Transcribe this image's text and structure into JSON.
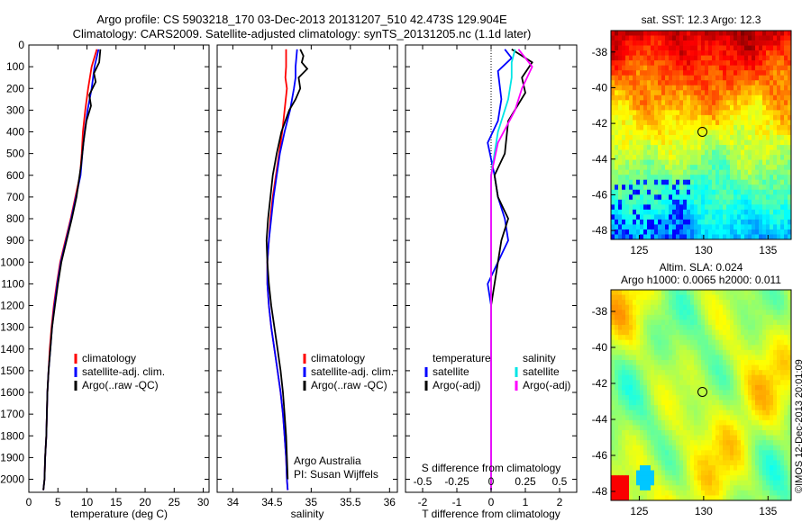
{
  "titles": {
    "line1": "Argo profile: CS 5903218_170 03-Dec-2013 20131207_510 42.473S 129.904E",
    "line2": "Climatology: CARS2009. Satellite-adjusted climatology: synTS_20131205.nc (1.1d later)"
  },
  "colors": {
    "climatology": "#ff0000",
    "satellite": "#0000ff",
    "argo": "#000000",
    "sat_salinity": "#00e5e5",
    "argo_adj_salinity": "#ff00ff"
  },
  "chart_data": [
    {
      "type": "line",
      "id": "temperature",
      "xlabel": "temperature (deg C)",
      "ylabel": "",
      "xlim": [
        0,
        31
      ],
      "ylim": [
        2060,
        0
      ],
      "y_reversed": true,
      "xticks": [
        0,
        5,
        10,
        15,
        20,
        25,
        30
      ],
      "yticks": [
        0,
        100,
        200,
        300,
        400,
        500,
        600,
        700,
        800,
        900,
        1000,
        1100,
        1200,
        1300,
        1400,
        1500,
        1600,
        1700,
        1800,
        1900,
        2000
      ],
      "legend": [
        "climatology",
        "satellite-adj. clim.",
        "Argo(..raw -QC)"
      ],
      "legend_position": "lower-center",
      "series": [
        {
          "name": "climatology",
          "color": "#ff0000",
          "x": [
            11.7,
            10.8,
            10.2,
            9.7,
            9.3,
            9.1,
            8.8,
            8.0,
            7.2,
            6.3,
            5.4,
            4.8,
            4.3,
            3.9,
            3.6,
            3.4,
            3.2,
            3.1,
            3.0,
            2.8,
            2.7,
            2.5
          ],
          "y": [
            20,
            100,
            200,
            300,
            400,
            500,
            600,
            700,
            800,
            900,
            1000,
            1100,
            1200,
            1300,
            1400,
            1500,
            1600,
            1700,
            1800,
            1900,
            2000,
            2050
          ]
        },
        {
          "name": "satellite-adj. clim.",
          "color": "#0000ff",
          "x": [
            12.0,
            11.3,
            10.8,
            10.1,
            9.6,
            9.2,
            8.9,
            8.1,
            7.3,
            6.4,
            5.5,
            4.9,
            4.4,
            4.0,
            3.7,
            3.4,
            3.2,
            3.1,
            3.0,
            2.8,
            2.7,
            2.5
          ],
          "y": [
            20,
            100,
            200,
            300,
            400,
            500,
            600,
            700,
            800,
            900,
            1000,
            1100,
            1200,
            1300,
            1400,
            1500,
            1600,
            1700,
            1800,
            1900,
            2000,
            2050
          ]
        },
        {
          "name": "Argo(..raw -QC)",
          "color": "#000000",
          "x": [
            12.3,
            12.1,
            11.2,
            11.5,
            10.4,
            10.7,
            9.9,
            9.4,
            9.0,
            8.2,
            7.4,
            6.5,
            5.6,
            5.0,
            4.5,
            4.0,
            3.7,
            3.4,
            3.2,
            3.1,
            3.0,
            2.8,
            2.7,
            2.5
          ],
          "y": [
            20,
            80,
            130,
            170,
            230,
            280,
            350,
            450,
            550,
            700,
            800,
            900,
            1000,
            1100,
            1200,
            1300,
            1400,
            1500,
            1600,
            1700,
            1800,
            1900,
            2000,
            2050
          ]
        }
      ]
    },
    {
      "type": "line",
      "id": "salinity",
      "xlabel": "salinity",
      "ylabel": "",
      "xlim": [
        33.8,
        36.1
      ],
      "ylim": [
        2060,
        0
      ],
      "y_reversed": true,
      "xticks": [
        34,
        34.5,
        35,
        35.5,
        36
      ],
      "legend": [
        "climatology",
        "satellite-adj. clim.",
        "Argo(..raw -QC)"
      ],
      "legend_position": "lower-center",
      "annotations": [
        "Argo Australia",
        "PI: Susan Wijffels"
      ],
      "series": [
        {
          "name": "climatology",
          "color": "#ff0000",
          "x": [
            34.68,
            34.68,
            34.67,
            34.69,
            34.66,
            34.63,
            34.59,
            34.55,
            34.51,
            34.48,
            34.46,
            34.44,
            34.44,
            34.46,
            34.49,
            34.53,
            34.57,
            34.61,
            34.64,
            34.66,
            34.68,
            34.69,
            34.7
          ],
          "y": [
            20,
            100,
            150,
            200,
            300,
            400,
            500,
            600,
            700,
            800,
            900,
            1000,
            1100,
            1200,
            1300,
            1400,
            1500,
            1600,
            1700,
            1800,
            1900,
            2000,
            2050
          ]
        },
        {
          "name": "satellite-adj. clim.",
          "color": "#0000ff",
          "x": [
            34.82,
            34.8,
            34.8,
            34.78,
            34.73,
            34.66,
            34.6,
            34.56,
            34.52,
            34.49,
            34.46,
            34.44,
            34.44,
            34.46,
            34.49,
            34.53,
            34.57,
            34.61,
            34.64,
            34.66,
            34.68,
            34.69,
            34.7
          ],
          "y": [
            20,
            100,
            150,
            200,
            300,
            400,
            500,
            600,
            700,
            800,
            900,
            1000,
            1100,
            1200,
            1300,
            1400,
            1500,
            1600,
            1700,
            1800,
            1900,
            2000,
            2050
          ]
        },
        {
          "name": "Argo(..raw -QC)",
          "color": "#000000",
          "x": [
            34.86,
            34.9,
            34.88,
            34.95,
            34.84,
            34.86,
            34.8,
            34.72,
            34.62,
            34.56,
            34.51,
            34.48,
            34.45,
            34.43,
            34.44,
            34.46,
            34.49,
            34.53,
            34.57,
            34.61,
            34.64,
            34.66,
            34.68,
            34.69,
            34.7
          ],
          "y": [
            20,
            50,
            80,
            110,
            150,
            200,
            250,
            300,
            400,
            500,
            600,
            700,
            800,
            900,
            1000,
            1100,
            1200,
            1300,
            1400,
            1500,
            1600,
            1700,
            1800,
            1900,
            2000
          ]
        }
      ]
    },
    {
      "type": "line",
      "id": "difference",
      "xlabel": "T difference from climatology",
      "xlabel2": "S difference from climatology",
      "xlim": [
        -2.5,
        2.5
      ],
      "ylim": [
        2060,
        0
      ],
      "y_reversed": true,
      "xticks": [
        -2,
        -1,
        0,
        1,
        2
      ],
      "s_ticks": [
        -0.5,
        -0.25,
        0,
        0.25,
        0.5
      ],
      "s_ticklabels": [
        "-0.5",
        "-0.25",
        "0",
        "0.25",
        "0.5"
      ],
      "legend_temperature_title": "temperature",
      "legend_salinity_title": "salinity",
      "legend_temperature": [
        "satellite",
        "Argo(-adj)"
      ],
      "legend_salinity": [
        "satellite",
        "Argo(-adj)"
      ],
      "series": [
        {
          "name": "satellite",
          "group": "temperature",
          "color": "#0000ff",
          "x": [
            0.4,
            0.6,
            0.2,
            0.3,
            0.2,
            -0.1,
            0.1,
            0.2,
            0.4,
            0.5,
            0.2,
            -0.1,
            0.0,
            0.0,
            0.0,
            0.0,
            0.0,
            0.0
          ],
          "y": [
            20,
            60,
            120,
            250,
            350,
            450,
            600,
            700,
            800,
            900,
            1000,
            1100,
            1200,
            1300,
            1500,
            1700,
            1900,
            2050
          ]
        },
        {
          "name": "Argo(-adj)",
          "group": "temperature",
          "color": "#000000",
          "x": [
            0.6,
            1.2,
            0.9,
            1.0,
            0.5,
            0.4,
            0.1,
            0.2,
            0.5,
            0.3,
            0.2,
            0.1,
            0.0,
            0.0,
            0.0,
            0.0,
            0.0
          ],
          "y": [
            20,
            80,
            150,
            220,
            350,
            500,
            600,
            700,
            800,
            900,
            1000,
            1100,
            1200,
            1300,
            1500,
            1800,
            2050
          ]
        },
        {
          "name": "satellite",
          "group": "salinity",
          "color": "#00e5e5",
          "x": [
            0.7,
            0.6,
            0.6,
            0.5,
            0.2,
            0.0,
            0.0,
            0.0,
            0.0,
            0.0
          ],
          "y": [
            20,
            80,
            150,
            250,
            400,
            600,
            800,
            1000,
            1500,
            2050
          ]
        },
        {
          "name": "Argo(-adj)",
          "group": "salinity",
          "color": "#ff00ff",
          "x": [
            0.8,
            1.2,
            0.9,
            0.7,
            0.2,
            0.0,
            0.0,
            0.0
          ],
          "y": [
            20,
            100,
            200,
            300,
            450,
            600,
            1000,
            2050
          ]
        }
      ]
    },
    {
      "type": "heatmap",
      "id": "sst-map",
      "title": "sat. SST: 12.3 Argo: 12.3",
      "xlim": [
        122.8,
        136.8
      ],
      "ylim": [
        -48.5,
        -36.8
      ],
      "xticks": [
        125,
        130,
        135
      ],
      "yticks": [
        -38,
        -40,
        -42,
        -44,
        -46,
        -48
      ],
      "marker": {
        "lon": 129.904,
        "lat": -42.473
      }
    },
    {
      "type": "heatmap",
      "id": "sla-map",
      "title": "Altim. SLA: 0.024",
      "subtitle": "Argo h1000: 0.0065 h2000: 0.011",
      "xlim": [
        122.8,
        136.8
      ],
      "ylim": [
        -48.5,
        -36.8
      ],
      "xticks": [
        125,
        130,
        135
      ],
      "yticks": [
        -38,
        -40,
        -42,
        -44,
        -46,
        -48
      ],
      "marker": {
        "lon": 129.904,
        "lat": -42.473
      }
    }
  ],
  "footer": {
    "stamp": "©IMOS 12-Dec-2013 20:01:09"
  }
}
